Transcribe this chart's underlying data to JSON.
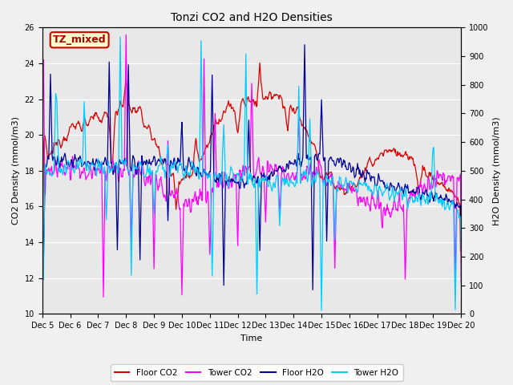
{
  "title": "Tonzi CO2 and H2O Densities",
  "xlabel": "Time",
  "ylabel_left": "CO2 Density (mmol/m3)",
  "ylabel_right": "H2O Density (mmol/m3)",
  "ylim_left": [
    10,
    26
  ],
  "ylim_right": [
    0,
    1000
  ],
  "xtick_labels": [
    "Dec 5",
    "Dec 6",
    "Dec 7",
    "Dec 8",
    "Dec 9",
    "Dec 10",
    "Dec 11",
    "Dec 12",
    "Dec 13",
    "Dec 14",
    "Dec 15",
    "Dec 16",
    "Dec 17",
    "Dec 18",
    "Dec 19",
    "Dec 20"
  ],
  "annotation_text": "TZ_mixed",
  "annotation_bg": "#ffffcc",
  "annotation_edge": "#cc0000",
  "colors": {
    "floor_co2": "#dd0000",
    "tower_co2": "#ff00ff",
    "floor_h2o": "#000099",
    "tower_h2o": "#00ccff"
  },
  "legend_labels": [
    "Floor CO2",
    "Tower CO2",
    "Floor H2O",
    "Tower H2O"
  ],
  "fig_bg": "#f0f0f0",
  "plot_bg": "#e8e8e8"
}
